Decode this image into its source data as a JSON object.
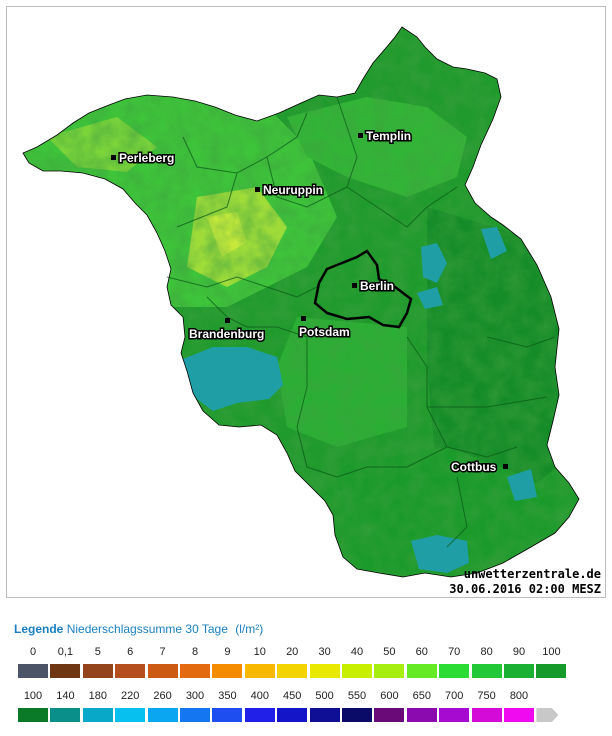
{
  "map": {
    "cities": [
      {
        "name": "Perleberg",
        "id": "perleberg"
      },
      {
        "name": "Templin",
        "id": "templin"
      },
      {
        "name": "Neuruppin",
        "id": "neuruppin"
      },
      {
        "name": "Berlin",
        "id": "berlin"
      },
      {
        "name": "Brandenburg",
        "id": "brandenburg"
      },
      {
        "name": "Potsdam",
        "id": "potsdam"
      },
      {
        "name": "Cottbus",
        "id": "cottbus"
      }
    ],
    "credit_site": "unwetterzentrale.de",
    "credit_date": "30.06.2016 02:00 MESZ",
    "colors": {
      "bright_green": "#3ec43a",
      "dark_green": "#1a9a2a",
      "yellow_green": "#b6e63a",
      "teal": "#1f9ea6",
      "outline": "#000000"
    }
  },
  "legend": {
    "label": "Legende",
    "description": "Niederschlagssumme 30 Tage",
    "unit": "(l/m²)",
    "row1": {
      "ticks": [
        "0",
        "0,1",
        "5",
        "6",
        "7",
        "8",
        "9",
        "10",
        "20",
        "30",
        "40",
        "50",
        "60",
        "70",
        "80",
        "90",
        "100"
      ],
      "colors": [
        "#4c5467",
        "#6e3612",
        "#93441b",
        "#b5501e",
        "#cc5a12",
        "#e46a10",
        "#f58c00",
        "#f9b800",
        "#f4d400",
        "#e9e900",
        "#c9ef00",
        "#a6ee10",
        "#66ea24",
        "#2bdc34",
        "#22c836",
        "#1ab034",
        "#169a2a"
      ]
    },
    "row2": {
      "ticks": [
        "100",
        "140",
        "180",
        "220",
        "260",
        "300",
        "350",
        "400",
        "450",
        "500",
        "550",
        "600",
        "650",
        "700",
        "750",
        "800"
      ],
      "colors": [
        "#0a7a28",
        "#0b8f8a",
        "#08a8c8",
        "#07c0f0",
        "#0aa6f2",
        "#1476f0",
        "#1e4ef0",
        "#2020e8",
        "#1414c8",
        "#0f0f96",
        "#0a0a68",
        "#6a0a78",
        "#8a0ab0",
        "#a60ad0",
        "#d40ad8",
        "#f00af0",
        "#c8c8c8"
      ]
    }
  }
}
